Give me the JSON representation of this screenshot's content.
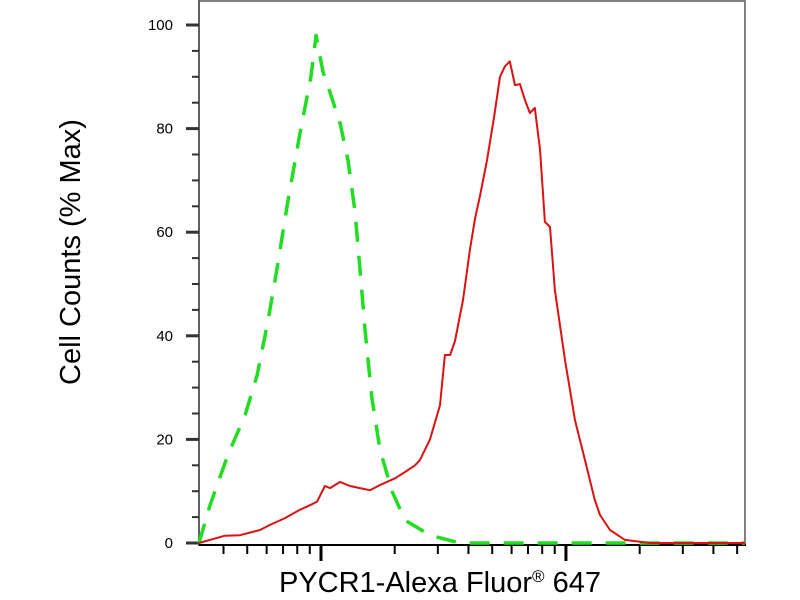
{
  "chart_data": {
    "type": "line",
    "title": "",
    "xlabel": "PYCR1-Alexa Fluor® 647",
    "xlabel_main": "PYCR1-Alexa Fluor",
    "xlabel_reg": "®",
    "xlabel_num": " 647",
    "ylabel": "Cell Counts (% Max)",
    "xscale": "log",
    "xlim": [
      2.502,
      4.731
    ],
    "ylim": [
      0,
      100
    ],
    "yticks": [
      "0",
      "20",
      "40",
      "60",
      "80",
      "100"
    ],
    "xticks_labeled": false,
    "grid": false,
    "legend": "none",
    "series": [
      {
        "color": "#22dd22",
        "style": "dashed",
        "x": [
          2.502,
          2.547,
          2.62,
          2.69,
          2.739,
          2.784,
          2.824,
          2.865,
          2.914,
          2.959,
          2.98,
          3.008,
          3.037,
          3.078,
          3.11,
          3.139,
          3.159,
          3.18,
          3.208,
          3.241,
          3.29,
          3.343,
          3.445,
          3.567,
          4.139,
          4.731
        ],
        "y": [
          0,
          7.3,
          17,
          24.7,
          32.4,
          43,
          54,
          66,
          79,
          90,
          98,
          91,
          87,
          81,
          74,
          64,
          53,
          41,
          28,
          18,
          10,
          4.4,
          1.5,
          0,
          0,
          0
        ]
      },
      {
        "color": "#dd1111",
        "style": "solid",
        "x": [
          2.502,
          2.608,
          2.669,
          2.751,
          2.792,
          2.853,
          2.914,
          2.955,
          2.984,
          3.016,
          3.037,
          3.078,
          3.118,
          3.159,
          3.2,
          3.241,
          3.302,
          3.343,
          3.384,
          3.404,
          3.445,
          3.486,
          3.506,
          3.527,
          3.547,
          3.58,
          3.608,
          3.629,
          3.649,
          3.678,
          3.706,
          3.731,
          3.751,
          3.771,
          3.792,
          3.812,
          3.833,
          3.853,
          3.873,
          3.894,
          3.914,
          3.935,
          3.955,
          3.996,
          4.037,
          4.078,
          4.118,
          4.139,
          4.18,
          4.241,
          4.343,
          4.731
        ],
        "y": [
          0,
          1.4,
          1.5,
          2.5,
          3.5,
          4.8,
          6.4,
          7.3,
          8,
          11,
          10.6,
          11.8,
          11,
          10.6,
          10.2,
          11.2,
          12.5,
          13.7,
          15,
          16,
          20,
          26.6,
          36.3,
          36.3,
          39,
          47,
          56.6,
          62.7,
          67,
          74,
          82,
          90,
          92,
          93,
          88.4,
          88.6,
          85.5,
          83,
          84,
          76,
          62,
          61,
          48.8,
          35.3,
          23.7,
          16,
          8.3,
          5.4,
          2.5,
          0.6,
          0,
          0
        ]
      }
    ]
  }
}
